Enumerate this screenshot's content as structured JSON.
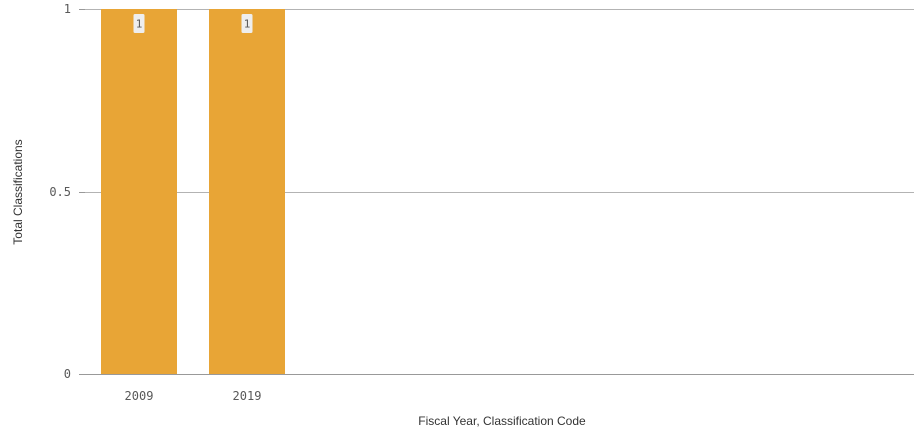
{
  "chart_data": {
    "type": "bar",
    "categories": [
      "2009",
      "2019"
    ],
    "values": [
      1,
      1
    ],
    "data_labels": [
      "1",
      "1"
    ],
    "yticks": [
      0,
      0.5,
      1
    ],
    "ytick_labels": [
      "0",
      "0.5",
      "1"
    ],
    "ylim": [
      0,
      1
    ],
    "xlabel": "Fiscal Year, Classification Code",
    "ylabel": "Total Classifications",
    "grid": true,
    "bar_color": "#e8a536",
    "label_box_color": "#eeeeee"
  }
}
